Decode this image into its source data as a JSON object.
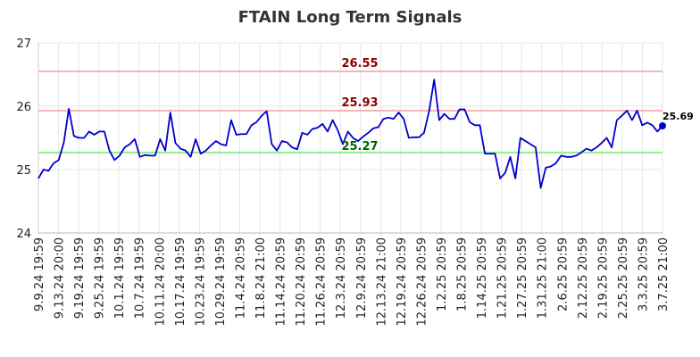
{
  "chart_data": {
    "type": "line",
    "title": "FTAIN Long Term Signals",
    "xlabel": "",
    "ylabel": "",
    "ylim": [
      24,
      27
    ],
    "yticks": [
      "24",
      "25",
      "26",
      "27"
    ],
    "grid": true,
    "x_tick_labels": [
      "9.9.24 19:59",
      "9.13.24 20:00",
      "9.19.24 19:59",
      "9.25.24 19:59",
      "10.1.24 19:59",
      "10.7.24 19:59",
      "10.11.24 20:00",
      "10.17.24 19:59",
      "10.23.24 19:59",
      "10.29.24 19:59",
      "11.4.24 20:59",
      "11.8.24 21:00",
      "11.14.24 20:59",
      "11.20.24 20:59",
      "11.26.24 20:59",
      "12.3.24 20:59",
      "12.9.24 20:59",
      "12.13.24 21:00",
      "12.19.24 20:59",
      "12.26.24 20:59",
      "1.2.25 20:59",
      "1.8.25 20:59",
      "1.14.25 20:59",
      "1.21.25 20:59",
      "1.27.25 20:59",
      "1.31.25 21:00",
      "2.6.25 20:59",
      "2.12.25 20:59",
      "2.19.25 20:59",
      "2.25.25 20:59",
      "3.3.25 20:59",
      "3.7.25 21:00"
    ],
    "reference_lines": [
      {
        "value": 26.55,
        "label": "26.55",
        "color": "#f4b6b6",
        "label_color": "#8b0000"
      },
      {
        "value": 25.93,
        "label": "25.93",
        "color": "#f4b6b6",
        "label_color": "#8b0000"
      },
      {
        "value": 25.27,
        "label": "25.27",
        "color": "#90ee90",
        "label_color": "#006400"
      }
    ],
    "series": [
      {
        "color": "#0000cc",
        "values": [
          24.86,
          25.0,
          24.98,
          25.1,
          25.15,
          25.42,
          25.96,
          25.53,
          25.5,
          25.5,
          25.6,
          25.55,
          25.6,
          25.6,
          25.3,
          25.15,
          25.22,
          25.35,
          25.4,
          25.48,
          25.2,
          25.23,
          25.22,
          25.22,
          25.48,
          25.3,
          25.9,
          25.42,
          25.33,
          25.3,
          25.2,
          25.48,
          25.25,
          25.3,
          25.38,
          25.45,
          25.4,
          25.38,
          25.78,
          25.55,
          25.56,
          25.56,
          25.7,
          25.75,
          25.85,
          25.92,
          25.4,
          25.3,
          25.45,
          25.43,
          25.35,
          25.32,
          25.58,
          25.55,
          25.64,
          25.66,
          25.72,
          25.6,
          25.78,
          25.62,
          25.4,
          25.6,
          25.5,
          25.45,
          25.52,
          25.58,
          25.65,
          25.67,
          25.8,
          25.82,
          25.8,
          25.9,
          25.8,
          25.5,
          25.51,
          25.51,
          25.58,
          25.92,
          26.42,
          25.78,
          25.88,
          25.8,
          25.8,
          25.95,
          25.95,
          25.75,
          25.7,
          25.7,
          25.25,
          25.25,
          25.25,
          24.86,
          24.95,
          25.2,
          24.86,
          25.5,
          25.45,
          25.4,
          25.35,
          24.71,
          25.03,
          25.05,
          25.1,
          25.22,
          25.2,
          25.2,
          25.22,
          25.27,
          25.33,
          25.3,
          25.35,
          25.42,
          25.5,
          25.35,
          25.78,
          25.85,
          25.93,
          25.78,
          25.93,
          25.7,
          25.74,
          25.7,
          25.6,
          25.69
        ]
      }
    ],
    "last_value_label": "25.69"
  }
}
